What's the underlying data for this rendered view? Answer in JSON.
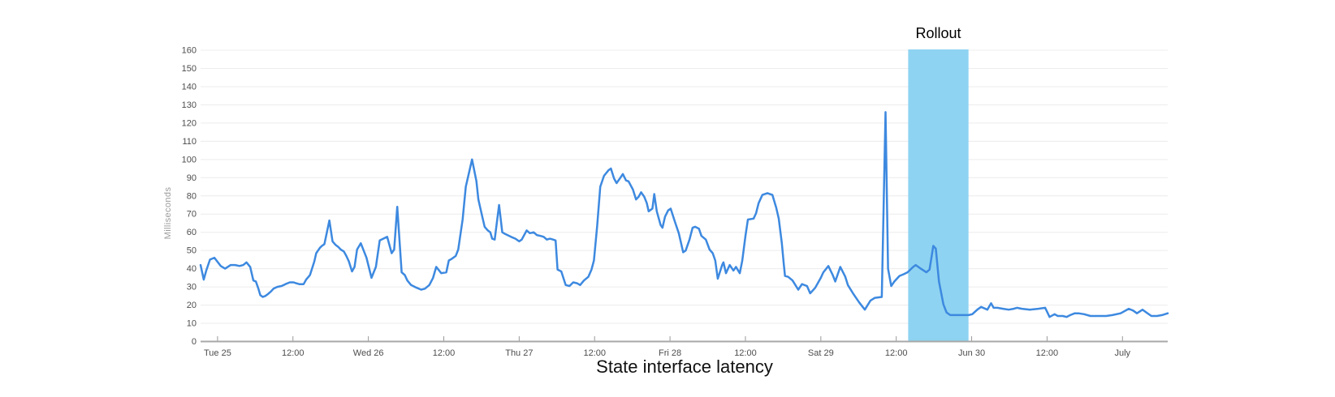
{
  "chart": {
    "title": "State interface latency",
    "annotation_label": "Rollout",
    "y_axis_title": "Milliseconds"
  },
  "colors": {
    "background": "#ffffff",
    "line": "#3d89e0",
    "band": "#8ed3f1",
    "grid": "#ececec",
    "axis": "#a8a8a8",
    "tick": "#999999",
    "tick_text": "#4d4d4d",
    "axis_title_text": "#9b9b9b",
    "title_text": "#111111",
    "annotation_text": "#000000"
  },
  "chart_data": {
    "type": "line",
    "title": "State interface latency",
    "ylabel": "Milliseconds",
    "ylim": [
      0,
      160
    ],
    "y_tick_step": 10,
    "grid": "horizontal",
    "legend": "none",
    "x_unit": "hours since Tue Jun 25 00:00",
    "x_window": [
      -2.7,
      151.2
    ],
    "x_ticks": [
      {
        "t": 0,
        "label": "Tue 25"
      },
      {
        "t": 12,
        "label": "12:00"
      },
      {
        "t": 24,
        "label": "Wed 26"
      },
      {
        "t": 36,
        "label": "12:00"
      },
      {
        "t": 48,
        "label": "Thu 27"
      },
      {
        "t": 60,
        "label": "12:00"
      },
      {
        "t": 72,
        "label": "Fri 28"
      },
      {
        "t": 84,
        "label": "12:00"
      },
      {
        "t": 96,
        "label": "Sat 29"
      },
      {
        "t": 108,
        "label": "12:00"
      },
      {
        "t": 120,
        "label": "Jun 30"
      },
      {
        "t": 132,
        "label": "12:00"
      },
      {
        "t": 144,
        "label": "July"
      }
    ],
    "annotation_band": {
      "label": "Rollout",
      "from_t": 109.9,
      "to_t": 119.5
    },
    "series": [
      {
        "points": [
          [
            -2.7,
            42
          ],
          [
            -2.2,
            34
          ],
          [
            -1.8,
            39
          ],
          [
            -1.2,
            45
          ],
          [
            -0.5,
            46
          ],
          [
            0.5,
            41.5
          ],
          [
            1.2,
            40
          ],
          [
            2.1,
            42
          ],
          [
            2.8,
            42
          ],
          [
            3.5,
            41.5
          ],
          [
            4.1,
            42
          ],
          [
            4.6,
            43.5
          ],
          [
            5.2,
            41
          ],
          [
            5.7,
            33.5
          ],
          [
            6.1,
            33
          ],
          [
            6.5,
            29
          ],
          [
            6.8,
            25.5
          ],
          [
            7.2,
            24.5
          ],
          [
            7.6,
            25
          ],
          [
            8,
            26
          ],
          [
            8.5,
            27.5
          ],
          [
            8.9,
            29
          ],
          [
            9.5,
            30
          ],
          [
            10.2,
            30.5
          ],
          [
            10.8,
            31.5
          ],
          [
            11.5,
            32.5
          ],
          [
            12.1,
            32.5
          ],
          [
            12.5,
            32
          ],
          [
            13,
            31.5
          ],
          [
            13.7,
            31.5
          ],
          [
            14.1,
            34
          ],
          [
            14.7,
            36.5
          ],
          [
            15.4,
            44
          ],
          [
            15.7,
            48.5
          ],
          [
            16.3,
            51.5
          ],
          [
            16.6,
            52.5
          ],
          [
            17,
            53.5
          ],
          [
            17.8,
            66.5
          ],
          [
            18.3,
            55
          ],
          [
            18.8,
            53
          ],
          [
            19.2,
            52
          ],
          [
            19.6,
            50.5
          ],
          [
            20.1,
            49.5
          ],
          [
            20.5,
            47
          ],
          [
            20.9,
            44
          ],
          [
            21.4,
            38.5
          ],
          [
            21.8,
            41
          ],
          [
            22.2,
            50.5
          ],
          [
            22.8,
            54
          ],
          [
            23.7,
            46
          ],
          [
            24.5,
            35
          ],
          [
            25.2,
            41
          ],
          [
            25.8,
            55.5
          ],
          [
            27,
            57.5
          ],
          [
            27.7,
            48.5
          ],
          [
            28.1,
            50.5
          ],
          [
            28.6,
            74
          ],
          [
            29.3,
            38
          ],
          [
            29.8,
            36.5
          ],
          [
            30.2,
            33.5
          ],
          [
            30.8,
            31
          ],
          [
            31.7,
            29.5
          ],
          [
            32.4,
            28.5
          ],
          [
            33,
            29
          ],
          [
            33.7,
            31
          ],
          [
            34.3,
            35
          ],
          [
            34.8,
            41
          ],
          [
            35.6,
            37.5
          ],
          [
            36.4,
            38
          ],
          [
            36.8,
            44.5
          ],
          [
            37.3,
            45.5
          ],
          [
            37.9,
            47
          ],
          [
            38.3,
            50.5
          ],
          [
            39,
            67
          ],
          [
            39.5,
            85
          ],
          [
            40.5,
            100
          ],
          [
            41.2,
            88
          ],
          [
            41.5,
            78
          ],
          [
            42.1,
            69
          ],
          [
            42.5,
            63
          ],
          [
            43,
            61
          ],
          [
            43.4,
            60
          ],
          [
            43.7,
            56.5
          ],
          [
            44.1,
            56
          ],
          [
            44.8,
            75
          ],
          [
            45.3,
            60
          ],
          [
            45.8,
            59
          ],
          [
            46.7,
            57.5
          ],
          [
            47.4,
            56.5
          ],
          [
            48,
            55
          ],
          [
            48.4,
            56
          ],
          [
            49.2,
            61
          ],
          [
            49.7,
            59.5
          ],
          [
            50.3,
            60
          ],
          [
            50.8,
            58.5
          ],
          [
            51.4,
            58
          ],
          [
            51.9,
            57.5
          ],
          [
            52.4,
            56
          ],
          [
            52.9,
            56.5
          ],
          [
            53.4,
            56
          ],
          [
            53.8,
            55.5
          ],
          [
            54.1,
            39.5
          ],
          [
            54.7,
            38.5
          ],
          [
            55.4,
            31
          ],
          [
            56,
            30.5
          ],
          [
            56.6,
            32.5
          ],
          [
            57.2,
            32
          ],
          [
            57.7,
            31
          ],
          [
            58.3,
            33.5
          ],
          [
            59,
            35.5
          ],
          [
            59.5,
            39.5
          ],
          [
            59.9,
            44.5
          ],
          [
            60.4,
            63
          ],
          [
            60.9,
            85
          ],
          [
            61.5,
            91
          ],
          [
            62.2,
            94
          ],
          [
            62.6,
            95
          ],
          [
            63.1,
            89.5
          ],
          [
            63.5,
            87
          ],
          [
            64.1,
            90
          ],
          [
            64.5,
            92
          ],
          [
            65,
            88.5
          ],
          [
            65.4,
            88
          ],
          [
            66.1,
            83.5
          ],
          [
            66.6,
            78
          ],
          [
            67,
            79.5
          ],
          [
            67.4,
            82
          ],
          [
            67.9,
            79.5
          ],
          [
            68.3,
            76
          ],
          [
            68.6,
            71.5
          ],
          [
            69.2,
            73
          ],
          [
            69.5,
            81
          ],
          [
            69.9,
            71.5
          ],
          [
            70.5,
            64
          ],
          [
            70.8,
            62.5
          ],
          [
            71.2,
            68.5
          ],
          [
            71.7,
            72
          ],
          [
            72.1,
            73
          ],
          [
            72.8,
            65.5
          ],
          [
            73.4,
            59.5
          ],
          [
            74.1,
            49
          ],
          [
            74.5,
            50
          ],
          [
            75.1,
            56
          ],
          [
            75.6,
            62.5
          ],
          [
            76,
            63
          ],
          [
            76.6,
            62
          ],
          [
            77,
            58
          ],
          [
            77.7,
            56
          ],
          [
            78.3,
            50.5
          ],
          [
            78.8,
            48.5
          ],
          [
            79.2,
            44.5
          ],
          [
            79.6,
            34.5
          ],
          [
            80.3,
            42
          ],
          [
            80.5,
            43.5
          ],
          [
            80.9,
            37.5
          ],
          [
            81.5,
            42
          ],
          [
            82.1,
            39
          ],
          [
            82.5,
            41
          ],
          [
            83.1,
            37.5
          ],
          [
            83.5,
            44.5
          ],
          [
            84,
            58
          ],
          [
            84.4,
            67
          ],
          [
            85.3,
            67.5
          ],
          [
            85.7,
            70.5
          ],
          [
            86.1,
            76
          ],
          [
            86.7,
            80.5
          ],
          [
            87.5,
            81.5
          ],
          [
            88.3,
            80.5
          ],
          [
            88.9,
            73.5
          ],
          [
            89.3,
            67.5
          ],
          [
            89.8,
            54
          ],
          [
            90.1,
            42.5
          ],
          [
            90.3,
            36
          ],
          [
            90.8,
            35.5
          ],
          [
            91.5,
            33.5
          ],
          [
            92.4,
            28.5
          ],
          [
            93,
            31.5
          ],
          [
            93.8,
            30.5
          ],
          [
            94.3,
            26.5
          ],
          [
            95.1,
            29.5
          ],
          [
            96,
            35
          ],
          [
            96.4,
            38
          ],
          [
            97.2,
            41.5
          ],
          [
            97.9,
            36.5
          ],
          [
            98.3,
            33
          ],
          [
            99.1,
            41
          ],
          [
            99.9,
            35.5
          ],
          [
            100.3,
            31
          ],
          [
            101.2,
            26
          ],
          [
            102.1,
            21.5
          ],
          [
            103,
            17.5
          ],
          [
            103.9,
            22.5
          ],
          [
            104.6,
            24
          ],
          [
            105.7,
            24.5
          ],
          [
            106.3,
            126
          ],
          [
            106.7,
            40
          ],
          [
            107.2,
            30.5
          ],
          [
            107.7,
            33
          ],
          [
            108.5,
            36
          ],
          [
            109.2,
            37
          ],
          [
            109.8,
            38
          ],
          [
            110.7,
            41
          ],
          [
            111.1,
            42
          ],
          [
            111.9,
            40
          ],
          [
            112.8,
            38
          ],
          [
            113.3,
            39.5
          ],
          [
            113.9,
            52.5
          ],
          [
            114.3,
            51
          ],
          [
            114.8,
            33
          ],
          [
            115.5,
            20.5
          ],
          [
            116,
            16
          ],
          [
            116.6,
            14.5
          ],
          [
            118.3,
            14.5
          ],
          [
            119.5,
            14.5
          ],
          [
            120.1,
            15
          ],
          [
            120.9,
            17.5
          ],
          [
            121.5,
            19
          ],
          [
            122.5,
            17.5
          ],
          [
            123.1,
            21
          ],
          [
            123.5,
            18.5
          ],
          [
            124.1,
            18.5
          ],
          [
            125,
            18
          ],
          [
            125.9,
            17.5
          ],
          [
            126.7,
            18
          ],
          [
            127.2,
            18.5
          ],
          [
            128,
            18
          ],
          [
            129.3,
            17.5
          ],
          [
            130.6,
            18
          ],
          [
            131.7,
            18.5
          ],
          [
            132.4,
            13.5
          ],
          [
            133.2,
            15
          ],
          [
            133.7,
            14
          ],
          [
            134.5,
            14
          ],
          [
            135.1,
            13.5
          ],
          [
            135.7,
            14.5
          ],
          [
            136.4,
            15.5
          ],
          [
            137,
            15.5
          ],
          [
            137.9,
            15
          ],
          [
            138.9,
            14
          ],
          [
            140.2,
            14
          ],
          [
            141.4,
            14
          ],
          [
            142.4,
            14.5
          ],
          [
            143.7,
            15.5
          ],
          [
            145,
            18
          ],
          [
            145.7,
            17
          ],
          [
            146.3,
            15.5
          ],
          [
            147.2,
            17.5
          ],
          [
            148,
            15.5
          ],
          [
            148.6,
            14
          ],
          [
            149.5,
            14
          ],
          [
            150.3,
            14.5
          ],
          [
            151.2,
            15.5
          ]
        ]
      }
    ]
  }
}
